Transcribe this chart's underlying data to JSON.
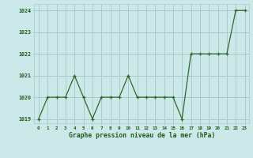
{
  "x": [
    0,
    1,
    2,
    3,
    4,
    5,
    6,
    7,
    8,
    9,
    10,
    11,
    12,
    13,
    14,
    15,
    16,
    17,
    18,
    19,
    20,
    21,
    22,
    23
  ],
  "y": [
    1019,
    1020,
    1020,
    1020,
    1021,
    1020,
    1019,
    1020,
    1020,
    1020,
    1021,
    1020,
    1020,
    1020,
    1020,
    1020,
    1019,
    1022,
    1022,
    1022,
    1022,
    1022,
    1024,
    1024
  ],
  "line_color": "#2d6a2d",
  "marker_color": "#2d6a2d",
  "bg_color": "#cce8e8",
  "grid_color": "#aacccc",
  "xlabel": "Graphe pression niveau de la mer (hPa)",
  "xlabel_color": "#1a5c1a",
  "tick_color": "#1a5c1a",
  "ylim_min": 1018.8,
  "ylim_max": 1024.3,
  "yticks": [
    1019,
    1020,
    1021,
    1022,
    1023,
    1024
  ],
  "xlim_min": -0.5,
  "xlim_max": 23.5,
  "xticks": [
    0,
    1,
    2,
    3,
    4,
    5,
    6,
    7,
    8,
    9,
    10,
    11,
    12,
    13,
    14,
    15,
    16,
    17,
    18,
    19,
    20,
    21,
    22,
    23
  ]
}
